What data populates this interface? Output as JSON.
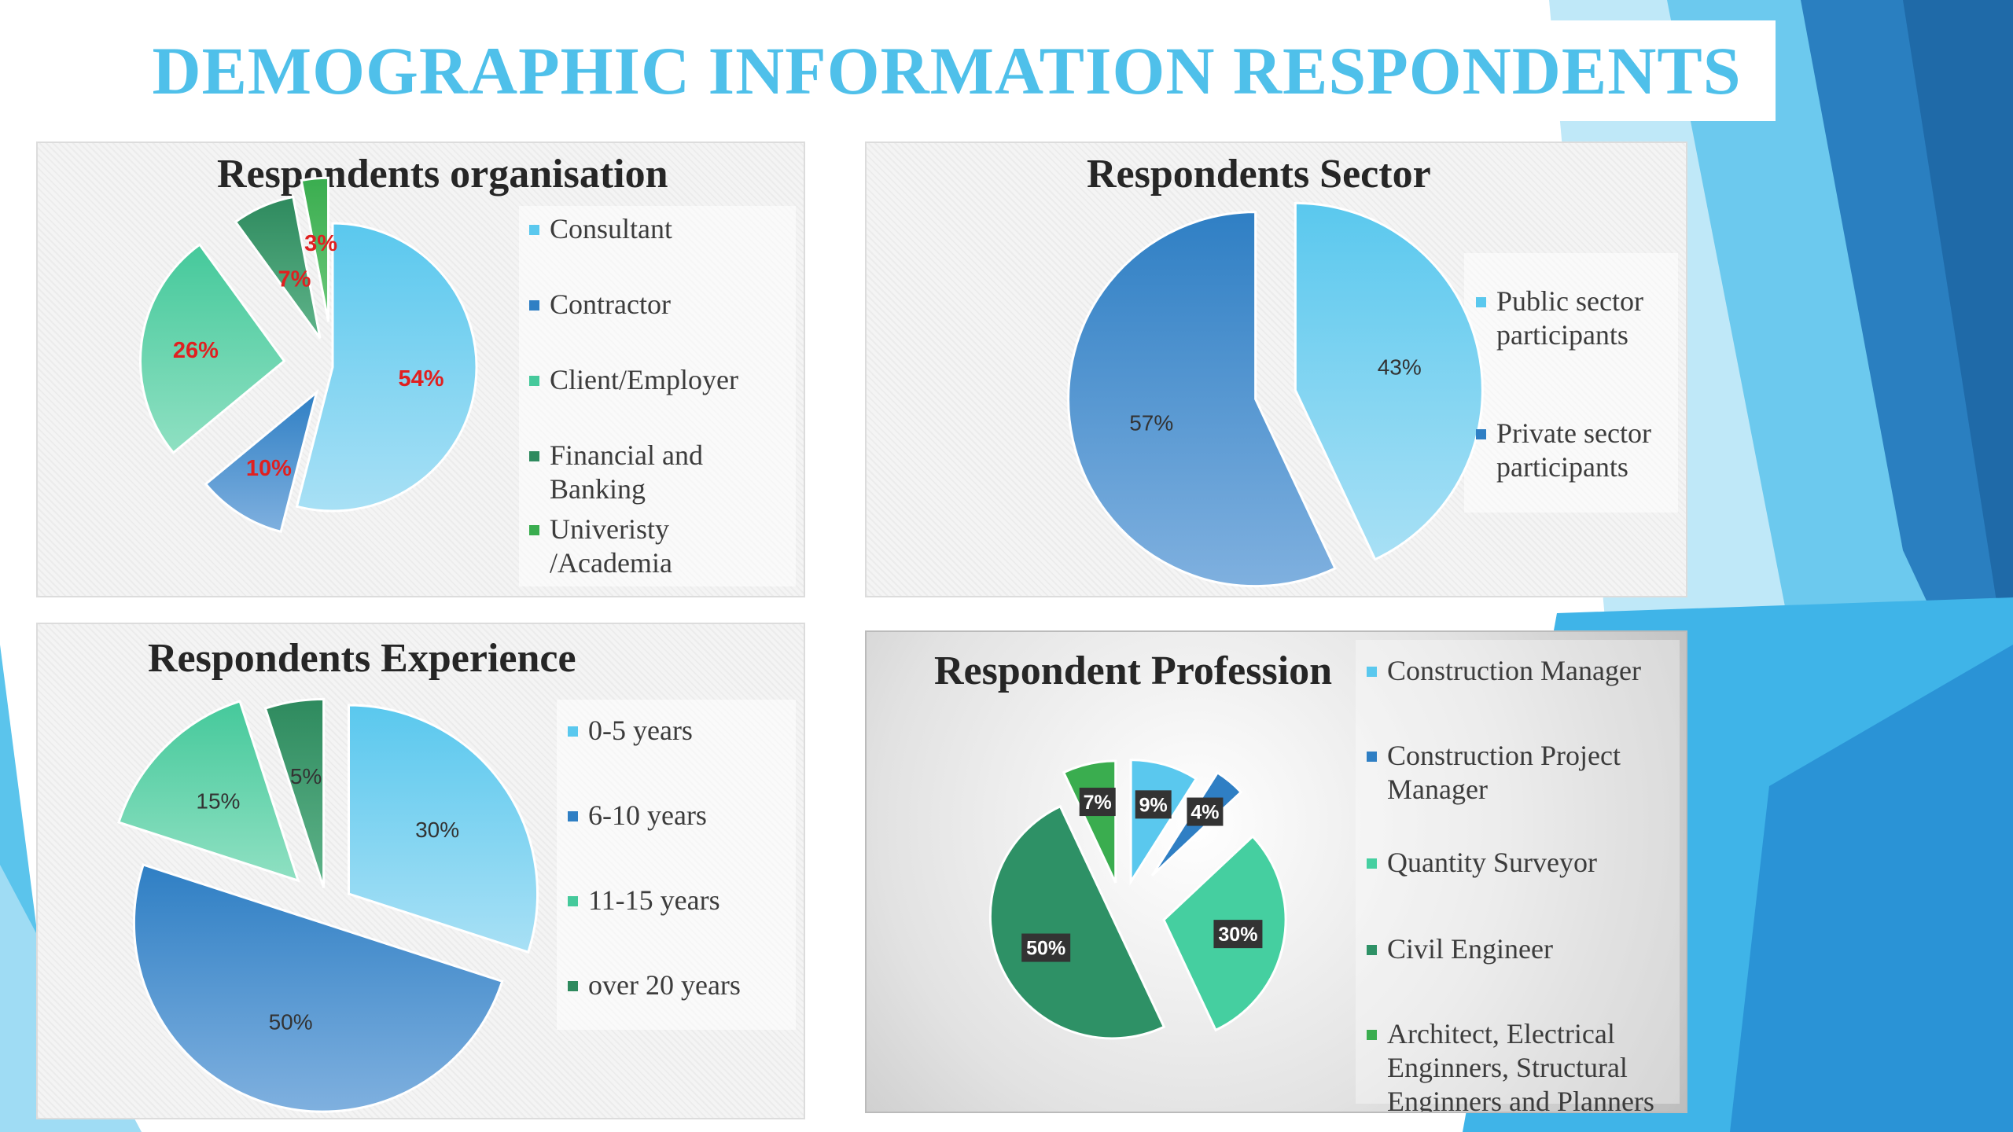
{
  "title": "DEMOGRAPHIC INFORMATION RESPONDENTS",
  "colors": {
    "title": "#4fc0ea",
    "label_red": "#e02020"
  },
  "chart_data": [
    {
      "type": "pie",
      "title": "Respondents organisation",
      "exploded": true,
      "label_color": "#e02020",
      "categories": [
        "Consultant",
        "Contractor",
        "Client/Employer",
        "Financial and\nBanking",
        "Univeristy\n/Academia"
      ],
      "values": [
        54,
        10,
        26,
        7,
        3
      ],
      "labels": [
        "54%",
        "10%",
        "26%",
        "7%",
        "3%"
      ],
      "colors": [
        [
          "#5ac8ee",
          "#a8e0f5"
        ],
        [
          "#2f7fc4",
          "#7fb0df"
        ],
        [
          "#45c99b",
          "#8fe0c2"
        ],
        [
          "#2e8a5e",
          "#5fb48a"
        ],
        [
          "#3aad4f",
          "#6cc97a"
        ]
      ],
      "legend_colors": [
        "#5ac8ee",
        "#2f7fc4",
        "#45c99b",
        "#2e8a5e",
        "#3aad4f"
      ],
      "legend_position": "right"
    },
    {
      "type": "pie",
      "title": "Respondents Sector",
      "exploded": true,
      "label_color": "#333333",
      "categories": [
        "Public sector\nparticipants",
        "Private sector\nparticipants"
      ],
      "values": [
        43,
        57
      ],
      "labels": [
        "43%",
        "57%"
      ],
      "colors": [
        [
          "#5ac8ee",
          "#a8e0f5"
        ],
        [
          "#2f7fc4",
          "#7fb0df"
        ]
      ],
      "legend_colors": [
        "#5ac8ee",
        "#2f7fc4"
      ],
      "legend_position": "right"
    },
    {
      "type": "pie",
      "title": "Respondents Experience",
      "exploded": true,
      "label_color": "#333333",
      "categories": [
        "0-5 years",
        "6-10 years",
        "11-15 years",
        "over 20 years"
      ],
      "values": [
        30,
        50,
        15,
        5
      ],
      "labels": [
        "30%",
        "50%",
        "15%",
        "5%"
      ],
      "colors": [
        [
          "#5ac8ee",
          "#a8e0f5"
        ],
        [
          "#2f7fc4",
          "#7fb0df"
        ],
        [
          "#45c99b",
          "#8fe0c2"
        ],
        [
          "#2e8a5e",
          "#5fb48a"
        ]
      ],
      "legend_colors": [
        "#5ac8ee",
        "#2f7fc4",
        "#45c99b",
        "#2e8a5e"
      ],
      "legend_position": "right"
    },
    {
      "type": "pie",
      "title": "Respondent Profession",
      "exploded": true,
      "label_style": "dark-box",
      "categories": [
        "Construction Manager",
        "Construction Project\nManager",
        "Quantity Surveyor",
        "Civil Engineer",
        "Architect, Electrical\nEnginners, Structural\nEnginners  and Planners"
      ],
      "values": [
        9,
        4,
        30,
        50,
        7
      ],
      "labels": [
        "9%",
        "4%",
        "30%",
        "50%",
        "7%"
      ],
      "colors": [
        [
          "#5ac8ee",
          "#5ac8ee"
        ],
        [
          "#2f7fc4",
          "#2f7fc4"
        ],
        [
          "#45cfa0",
          "#45cfa0"
        ],
        [
          "#2e9166",
          "#2e9166"
        ],
        [
          "#3aad4f",
          "#3aad4f"
        ]
      ],
      "legend_colors": [
        "#5ac8ee",
        "#2f7fc4",
        "#45cfa0",
        "#2e9166",
        "#3aad4f"
      ],
      "legend_position": "right"
    }
  ]
}
